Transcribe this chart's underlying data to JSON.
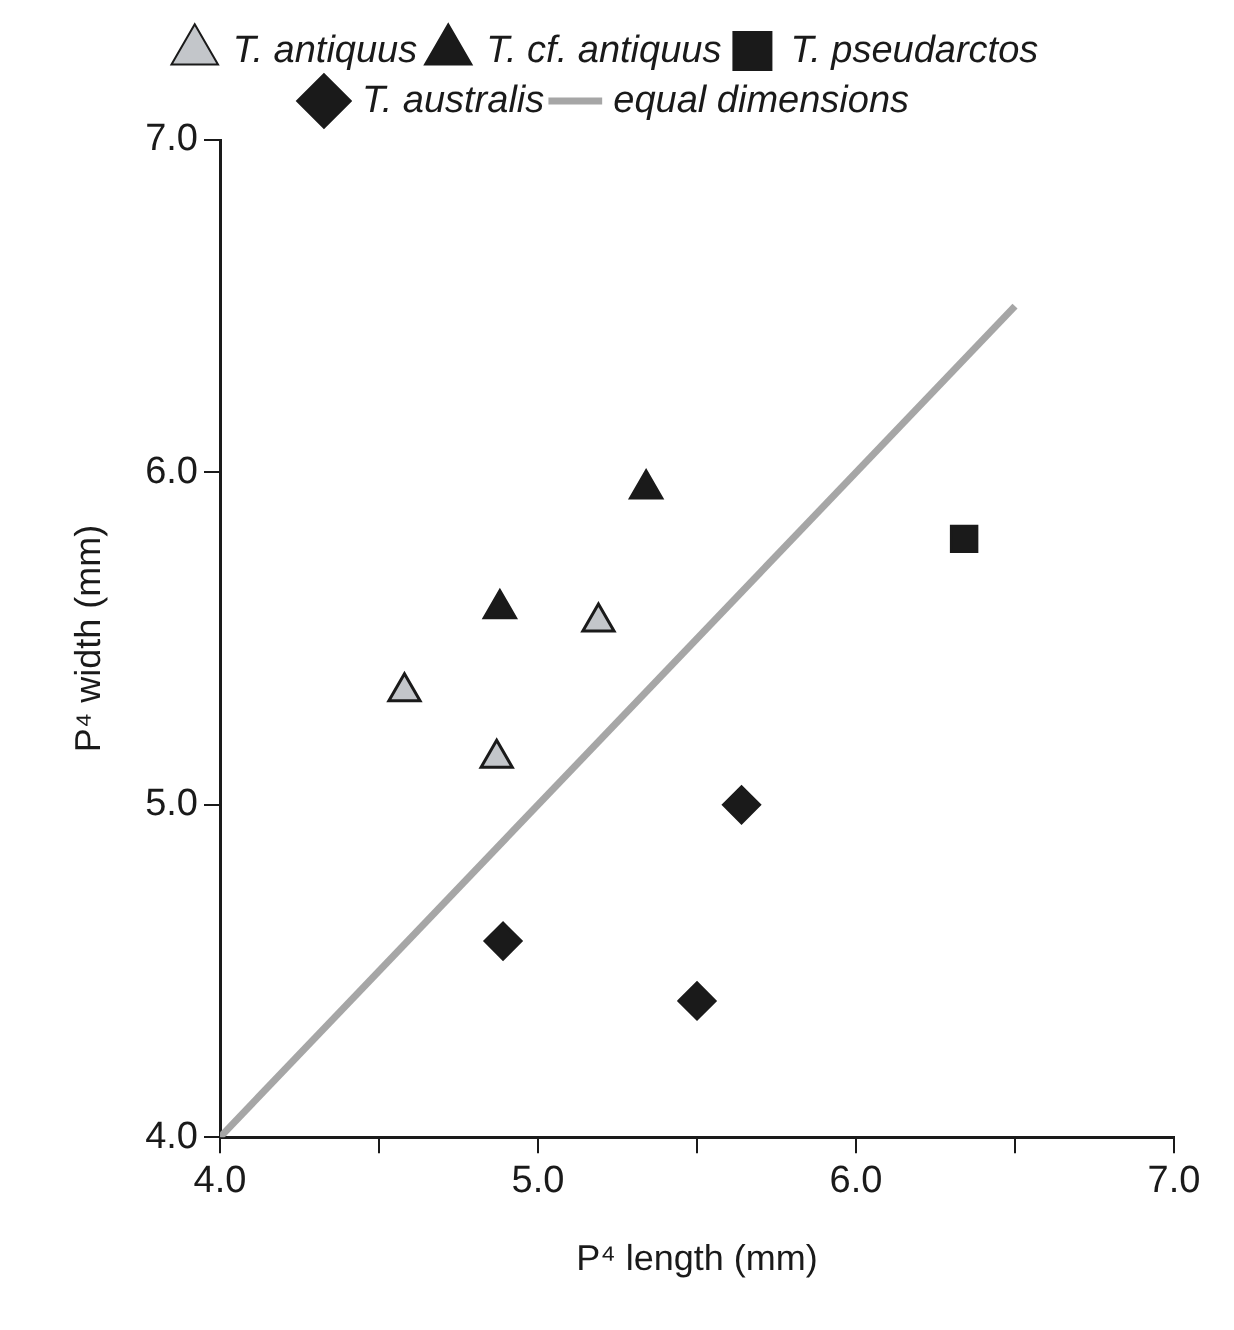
{
  "chart_data": {
    "type": "scatter",
    "xlabel": "P⁴ length (mm)",
    "ylabel": "P⁴ width (mm)",
    "xlim": [
      4,
      7
    ],
    "ylim": [
      4,
      7
    ],
    "xticks": [
      {
        "value": 4,
        "label": "4.0"
      },
      {
        "value": 4.5,
        "label": null
      },
      {
        "value": 5,
        "label": "5.0"
      },
      {
        "value": 5.5,
        "label": null
      },
      {
        "value": 6,
        "label": "6.0"
      },
      {
        "value": 6.5,
        "label": null
      },
      {
        "value": 7,
        "label": "7.0"
      }
    ],
    "yticks": [
      {
        "value": 4,
        "label": "4.0"
      },
      {
        "value": 5,
        "label": "5.0"
      },
      {
        "value": 6,
        "label": "6.0"
      },
      {
        "value": 7,
        "label": "7.0"
      }
    ],
    "grid": false,
    "legend": "top",
    "series": [
      {
        "name": "T. antiquus",
        "color": "#c3c6ca",
        "marker": "triangle",
        "x": [
          4.58,
          4.87,
          5.19
        ],
        "values": [
          5.34,
          5.14,
          5.55
        ]
      },
      {
        "name": "T. cf. antiquus",
        "color": "#1a1a1a",
        "marker": "triangle",
        "x": [
          4.88,
          5.34
        ],
        "values": [
          5.59,
          5.95
        ]
      },
      {
        "name": "T. pseudarctos",
        "color": "#1a1a1a",
        "marker": "square",
        "x": [
          6.34
        ],
        "values": [
          5.8
        ]
      },
      {
        "name": "T. australis",
        "color": "#1a1a1a",
        "marker": "diamond",
        "x": [
          4.89,
          5.5,
          5.64
        ],
        "values": [
          4.59,
          4.41,
          5.0
        ]
      },
      {
        "name": "equal dimensions",
        "type": "line",
        "color": "#a6a6a6",
        "marker": "none",
        "x": [
          4,
          6.5
        ],
        "values": [
          4,
          6.5
        ]
      }
    ]
  }
}
